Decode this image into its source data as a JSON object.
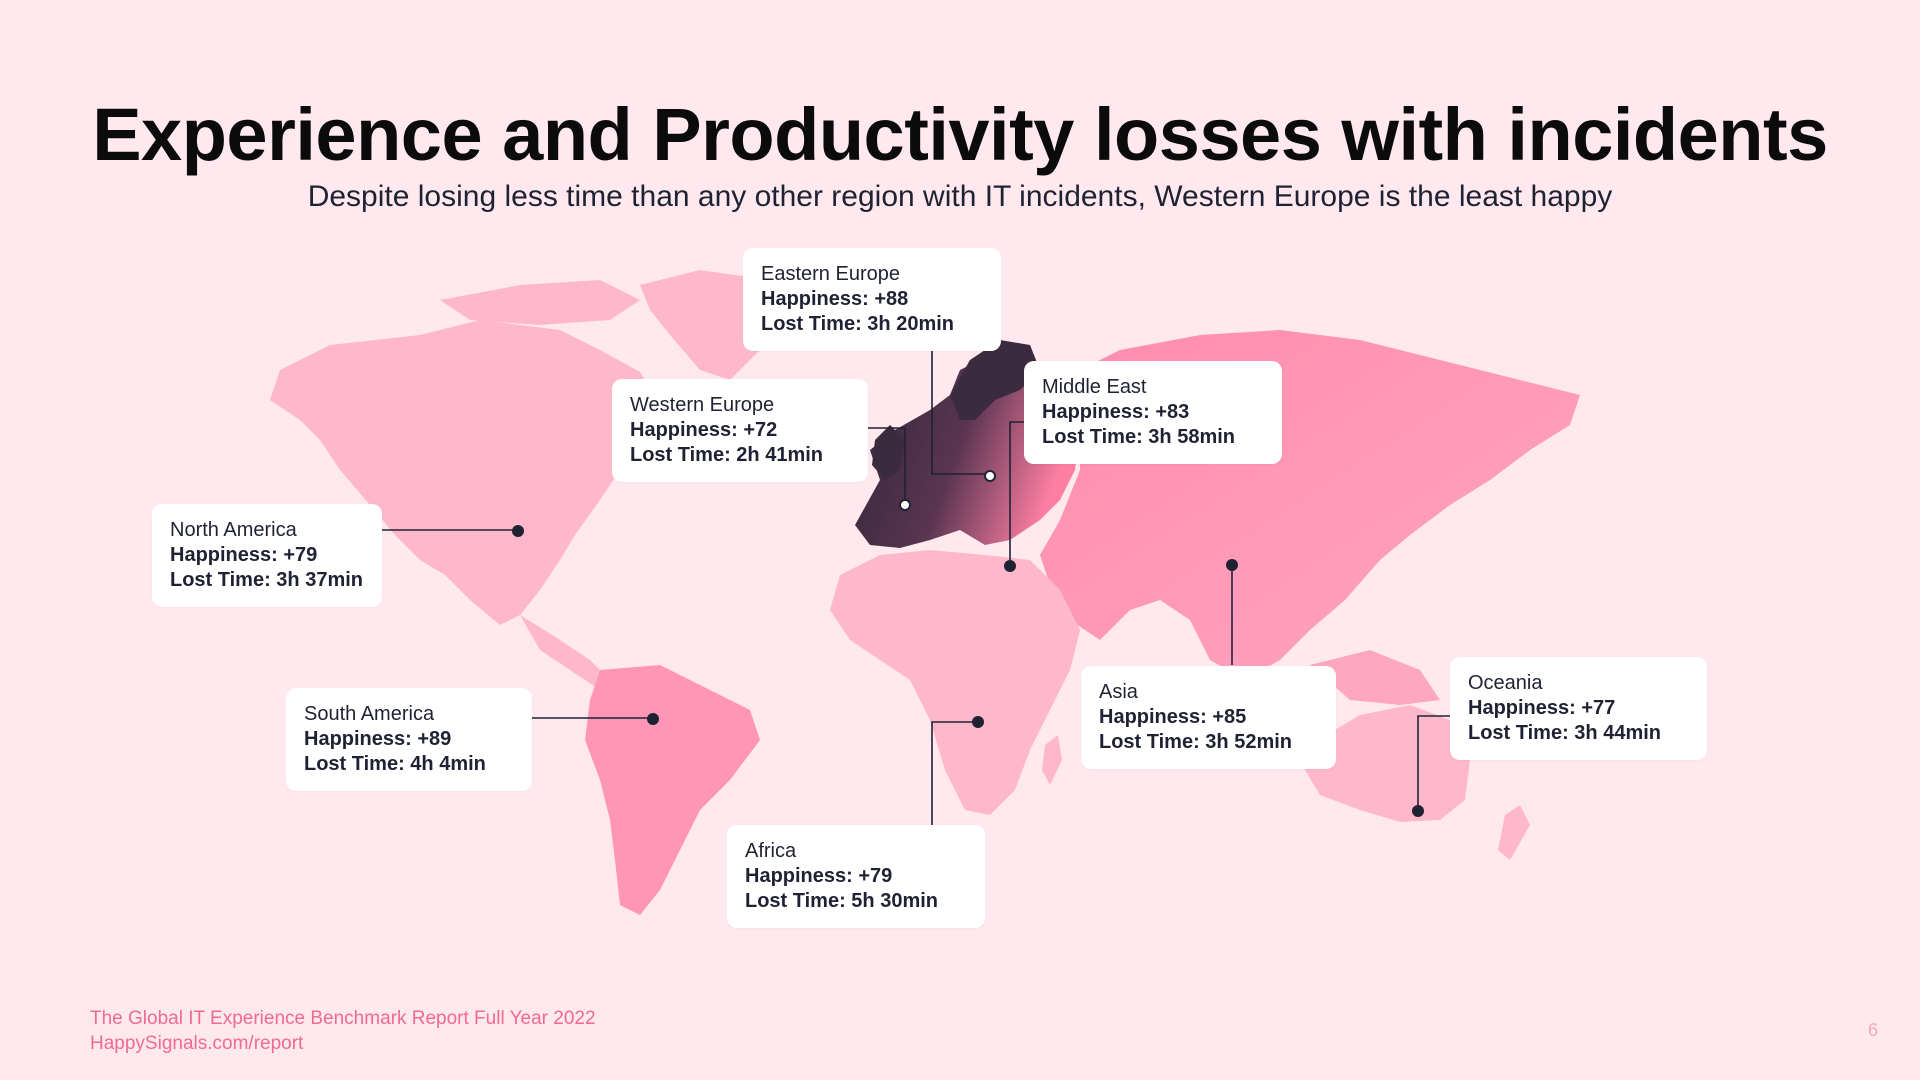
{
  "title": "Experience and Productivity losses with incidents",
  "subtitle": "Despite losing less time than any other region with IT incidents, Western Europe is the least happy",
  "regions": [
    {
      "name": "Eastern Europe",
      "happiness": "Happiness: +88",
      "lost_time": "Lost Time: 3h 20min"
    },
    {
      "name": "Western Europe",
      "happiness": "Happiness: +72",
      "lost_time": "Lost Time: 2h 41min"
    },
    {
      "name": "Middle East",
      "happiness": "Happiness: +83",
      "lost_time": "Lost Time: 3h 58min"
    },
    {
      "name": "North America",
      "happiness": "Happiness: +79",
      "lost_time": "Lost Time: 3h 37min"
    },
    {
      "name": "South America",
      "happiness": "Happiness: +89",
      "lost_time": "Lost Time: 4h 4min"
    },
    {
      "name": "Asia",
      "happiness": "Happiness: +85",
      "lost_time": "Lost Time: 3h 52min"
    },
    {
      "name": "Oceania",
      "happiness": "Happiness: +77",
      "lost_time": "Lost Time: 3h 44min"
    },
    {
      "name": "Africa",
      "happiness": "Happiness: +79",
      "lost_time": "Lost Time: 5h 30min"
    }
  ],
  "footer": {
    "report": "The Global IT Experience Benchmark Report Full Year 2022",
    "url": "HappySignals.com/report"
  },
  "page_number": "6",
  "colors": {
    "background": "#ffe9ee",
    "land_light": "#ffb4c9",
    "land_mid": "#ff93b3",
    "europe_dark": "#3d2a3b",
    "footer_text": "#f06a93"
  }
}
